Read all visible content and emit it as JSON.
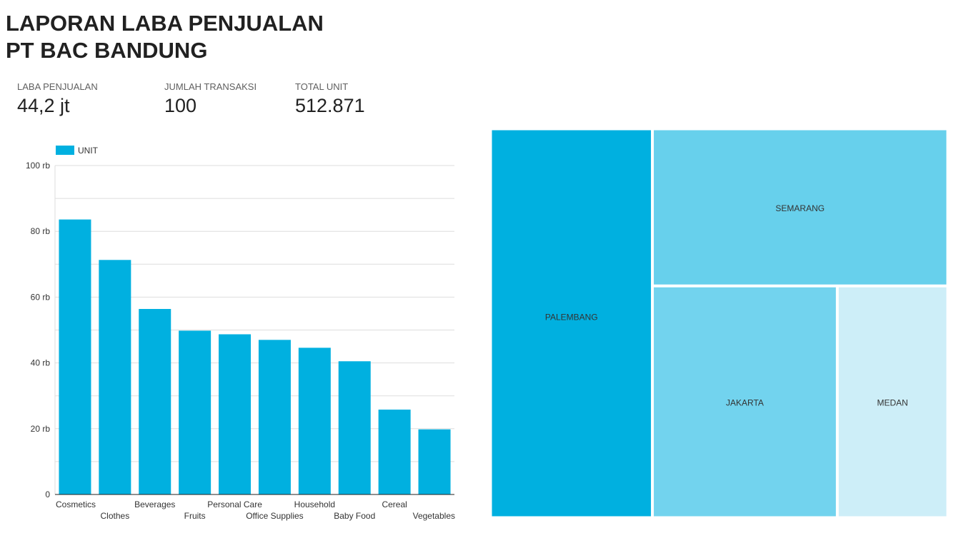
{
  "report": {
    "title_line1": "LAPORAN LABA PENJUALAN",
    "title_line2": "PT BAC BANDUNG"
  },
  "kpis": [
    {
      "label": "LABA PENJUALAN",
      "value": "44,2 jt"
    },
    {
      "label": "JUMLAH TRANSAKSI",
      "value": "100"
    },
    {
      "label": "TOTAL UNIT",
      "value": "512.871"
    }
  ],
  "colors": {
    "bar": "#00b0e0",
    "grid": "#dedede",
    "axis": "#222222",
    "text": "#333333"
  },
  "chart_data": [
    {
      "type": "bar",
      "legend": "UNIT",
      "legend_position": "top-left",
      "categories": [
        "Cosmetics",
        "Clothes",
        "Beverages",
        "Fruits",
        "Personal Care",
        "Office Supplies",
        "Household",
        "Baby Food",
        "Cereal",
        "Vegetables"
      ],
      "values": [
        83600,
        71300,
        56400,
        49800,
        48700,
        47000,
        44600,
        40500,
        25800,
        19800
      ],
      "ylim": [
        0,
        100000
      ],
      "yticks": [
        0,
        20000,
        40000,
        60000,
        80000,
        100000
      ],
      "ytick_labels": [
        "0",
        "20 rb",
        "40 rb",
        "60 rb",
        "80 rb",
        "100 rb"
      ],
      "grid": true
    },
    {
      "type": "treemap",
      "items": [
        {
          "label": "PALEMBANG",
          "value": 35.4,
          "color": "#00b0e0"
        },
        {
          "label": "SEMARANG",
          "value": 26.1,
          "color": "#67d0ec"
        },
        {
          "label": "JAKARTA",
          "value": 24.1,
          "color": "#72d3ee"
        },
        {
          "label": "MEDAN",
          "value": 14.4,
          "color": "#cdeef8"
        }
      ]
    }
  ]
}
